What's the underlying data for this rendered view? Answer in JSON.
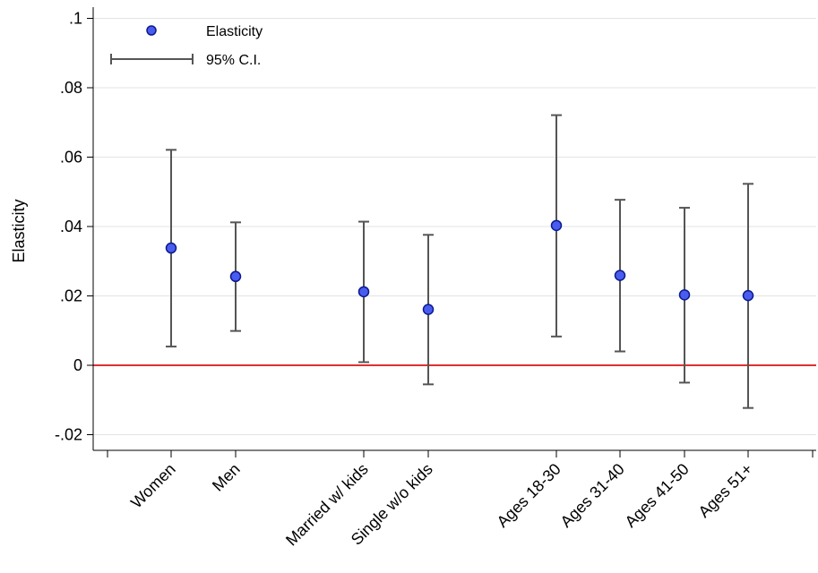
{
  "chart_data": {
    "type": "scatter",
    "title": "",
    "ylabel": "Elasticity",
    "xlabel": "",
    "ylim": [
      -0.025,
      0.105
    ],
    "yticks": [
      -0.02,
      0,
      0.02,
      0.04,
      0.06,
      0.08,
      0.1
    ],
    "ytick_labels": [
      "-.02",
      "0",
      ".02",
      ".04",
      ".06",
      ".08",
      ".1"
    ],
    "grid": true,
    "reference_line": {
      "y": 0,
      "color": "#e03030"
    },
    "legend": {
      "placement": "top-left",
      "items": [
        {
          "label": "Elasticity",
          "marker": "circle",
          "color": "#4a5cf0"
        },
        {
          "label": "95% C.I.",
          "marker": "capped-line",
          "color": "#555555"
        }
      ]
    },
    "categories": [
      "Women",
      "Men",
      "Married w/ kids",
      "Single w/o kids",
      "Ages 18-30",
      "Ages 31-40",
      "Ages 41-50",
      "Ages 51+"
    ],
    "series": [
      {
        "name": "Elasticity",
        "values": [
          0.0338,
          0.0256,
          0.0212,
          0.0161,
          0.0403,
          0.0259,
          0.0203,
          0.0201
        ],
        "ci_low": [
          0.0054,
          0.0099,
          0.0009,
          -0.0055,
          0.0083,
          0.004,
          -0.005,
          -0.0123
        ],
        "ci_high": [
          0.0621,
          0.0412,
          0.0414,
          0.0376,
          0.0721,
          0.0477,
          0.0454,
          0.0523
        ]
      }
    ]
  }
}
